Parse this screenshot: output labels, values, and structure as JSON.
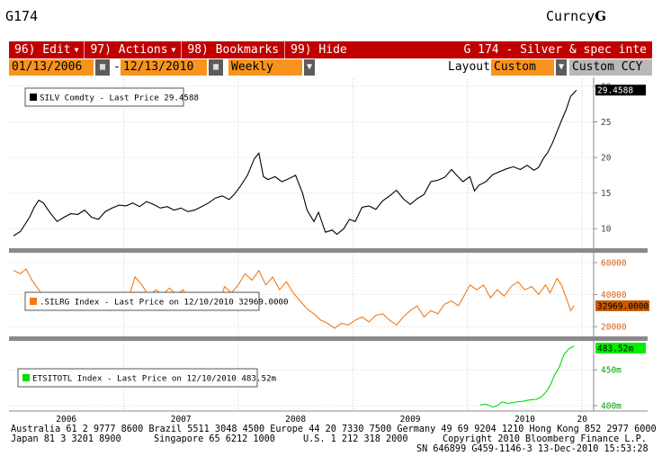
{
  "header": {
    "code": "G174",
    "currency_label": "Curncy",
    "currency_key": "G"
  },
  "menu": {
    "items": [
      {
        "label": "96) Edit",
        "dropdown": true
      },
      {
        "label": "97) Actions",
        "dropdown": true
      },
      {
        "label": "98) Bookmarks",
        "dropdown": false
      },
      {
        "label": "99) Hide",
        "dropdown": false
      }
    ],
    "title": "G 174 - Silver & spec inte"
  },
  "controls": {
    "start_date": "01/13/2006",
    "end_date": "12/13/2010",
    "period": "Weekly",
    "layout_label": "Layout",
    "layout_value": "Custom",
    "ccy": "Custom CCY"
  },
  "colors": {
    "accent": "#c00000",
    "field": "#f7941d",
    "silver": "#000000",
    "silrg": "#f07a1a",
    "etsitotl": "#00dd00"
  },
  "chart_data": [
    {
      "type": "line",
      "legend": "SILV Comdty - Last Price 29.4588",
      "last_label": "29.4588",
      "ylim": [
        7.5,
        31
      ],
      "ticks": [
        10,
        15,
        20,
        25,
        30
      ],
      "x_start": 2006.04,
      "x_end": 2010.95,
      "points": [
        [
          2006.04,
          9.0
        ],
        [
          2006.1,
          9.6
        ],
        [
          2006.14,
          10.6
        ],
        [
          2006.18,
          11.6
        ],
        [
          2006.22,
          13.0
        ],
        [
          2006.26,
          14.0
        ],
        [
          2006.3,
          13.6
        ],
        [
          2006.36,
          12.2
        ],
        [
          2006.42,
          11.0
        ],
        [
          2006.48,
          11.6
        ],
        [
          2006.54,
          12.1
        ],
        [
          2006.6,
          12.0
        ],
        [
          2006.66,
          12.6
        ],
        [
          2006.72,
          11.6
        ],
        [
          2006.78,
          11.3
        ],
        [
          2006.84,
          12.4
        ],
        [
          2006.9,
          12.9
        ],
        [
          2006.96,
          13.3
        ],
        [
          2007.02,
          13.2
        ],
        [
          2007.08,
          13.6
        ],
        [
          2007.14,
          13.1
        ],
        [
          2007.2,
          13.8
        ],
        [
          2007.26,
          13.4
        ],
        [
          2007.32,
          12.9
        ],
        [
          2007.38,
          13.1
        ],
        [
          2007.44,
          12.6
        ],
        [
          2007.5,
          12.9
        ],
        [
          2007.56,
          12.4
        ],
        [
          2007.62,
          12.6
        ],
        [
          2007.68,
          13.1
        ],
        [
          2007.74,
          13.6
        ],
        [
          2007.8,
          14.3
        ],
        [
          2007.86,
          14.6
        ],
        [
          2007.92,
          14.1
        ],
        [
          2007.97,
          14.9
        ],
        [
          2008.02,
          16.0
        ],
        [
          2008.08,
          17.5
        ],
        [
          2008.14,
          19.8
        ],
        [
          2008.18,
          20.6
        ],
        [
          2008.22,
          17.3
        ],
        [
          2008.26,
          16.9
        ],
        [
          2008.32,
          17.3
        ],
        [
          2008.38,
          16.6
        ],
        [
          2008.44,
          17.0
        ],
        [
          2008.5,
          17.5
        ],
        [
          2008.56,
          15.0
        ],
        [
          2008.6,
          12.6
        ],
        [
          2008.66,
          11.0
        ],
        [
          2008.7,
          12.3
        ],
        [
          2008.76,
          9.5
        ],
        [
          2008.82,
          9.8
        ],
        [
          2008.86,
          9.2
        ],
        [
          2008.92,
          10.0
        ],
        [
          2008.97,
          11.3
        ],
        [
          2009.02,
          11.0
        ],
        [
          2009.08,
          13.0
        ],
        [
          2009.14,
          13.2
        ],
        [
          2009.2,
          12.7
        ],
        [
          2009.26,
          13.9
        ],
        [
          2009.32,
          14.6
        ],
        [
          2009.38,
          15.4
        ],
        [
          2009.44,
          14.2
        ],
        [
          2009.5,
          13.4
        ],
        [
          2009.56,
          14.2
        ],
        [
          2009.62,
          14.8
        ],
        [
          2009.68,
          16.6
        ],
        [
          2009.74,
          16.8
        ],
        [
          2009.8,
          17.2
        ],
        [
          2009.86,
          18.3
        ],
        [
          2009.9,
          17.6
        ],
        [
          2009.96,
          16.6
        ],
        [
          2010.02,
          17.3
        ],
        [
          2010.06,
          15.3
        ],
        [
          2010.1,
          16.1
        ],
        [
          2010.16,
          16.6
        ],
        [
          2010.22,
          17.6
        ],
        [
          2010.28,
          18.0
        ],
        [
          2010.34,
          18.4
        ],
        [
          2010.4,
          18.7
        ],
        [
          2010.46,
          18.3
        ],
        [
          2010.52,
          18.9
        ],
        [
          2010.58,
          18.2
        ],
        [
          2010.62,
          18.6
        ],
        [
          2010.66,
          19.8
        ],
        [
          2010.7,
          20.7
        ],
        [
          2010.74,
          22.0
        ],
        [
          2010.78,
          23.6
        ],
        [
          2010.82,
          25.2
        ],
        [
          2010.86,
          26.7
        ],
        [
          2010.9,
          28.6
        ],
        [
          2010.95,
          29.46
        ]
      ]
    },
    {
      "type": "line",
      "legend": ".SILRG Index - Last Price on 12/10/2010 32969.0000",
      "last_label": "32969.0000",
      "ylim": [
        15000,
        65000
      ],
      "ticks": [
        20000,
        40000,
        60000
      ],
      "x_start": 2006.04,
      "x_end": 2010.93,
      "points": [
        [
          2006.04,
          55000
        ],
        [
          2006.1,
          53000
        ],
        [
          2006.15,
          56000
        ],
        [
          2006.2,
          49000
        ],
        [
          2006.25,
          44000
        ],
        [
          2006.32,
          37000
        ],
        [
          2006.38,
          32000
        ],
        [
          2006.44,
          35000
        ],
        [
          2006.5,
          31000
        ],
        [
          2006.56,
          36000
        ],
        [
          2006.6,
          38000
        ],
        [
          2006.64,
          32000
        ],
        [
          2006.7,
          36000
        ],
        [
          2006.76,
          33000
        ],
        [
          2006.82,
          38000
        ],
        [
          2006.88,
          30000
        ],
        [
          2006.94,
          36000
        ],
        [
          2007.0,
          41000
        ],
        [
          2007.04,
          37000
        ],
        [
          2007.1,
          51000
        ],
        [
          2007.16,
          46000
        ],
        [
          2007.22,
          39000
        ],
        [
          2007.28,
          43000
        ],
        [
          2007.34,
          40000
        ],
        [
          2007.4,
          44000
        ],
        [
          2007.46,
          40000
        ],
        [
          2007.52,
          43000
        ],
        [
          2007.58,
          35000
        ],
        [
          2007.64,
          38000
        ],
        [
          2007.7,
          34000
        ],
        [
          2007.76,
          39000
        ],
        [
          2007.82,
          31000
        ],
        [
          2007.88,
          45000
        ],
        [
          2007.94,
          41000
        ],
        [
          2008.0,
          46000
        ],
        [
          2008.06,
          53000
        ],
        [
          2008.12,
          49000
        ],
        [
          2008.18,
          55000
        ],
        [
          2008.24,
          46000
        ],
        [
          2008.3,
          51000
        ],
        [
          2008.36,
          43000
        ],
        [
          2008.42,
          48000
        ],
        [
          2008.48,
          41000
        ],
        [
          2008.54,
          36000
        ],
        [
          2008.6,
          31000
        ],
        [
          2008.66,
          28000
        ],
        [
          2008.72,
          24000
        ],
        [
          2008.78,
          22000
        ],
        [
          2008.84,
          19000
        ],
        [
          2008.9,
          22000
        ],
        [
          2008.96,
          21000
        ],
        [
          2009.02,
          24000
        ],
        [
          2009.08,
          26000
        ],
        [
          2009.14,
          23000
        ],
        [
          2009.2,
          27000
        ],
        [
          2009.26,
          28000
        ],
        [
          2009.32,
          24000
        ],
        [
          2009.38,
          21000
        ],
        [
          2009.44,
          26000
        ],
        [
          2009.5,
          30000
        ],
        [
          2009.56,
          33000
        ],
        [
          2009.62,
          26000
        ],
        [
          2009.68,
          30000
        ],
        [
          2009.74,
          28000
        ],
        [
          2009.8,
          34000
        ],
        [
          2009.86,
          36000
        ],
        [
          2009.92,
          33000
        ],
        [
          2009.96,
          38000
        ],
        [
          2010.02,
          46000
        ],
        [
          2010.08,
          43000
        ],
        [
          2010.14,
          46000
        ],
        [
          2010.2,
          38000
        ],
        [
          2010.26,
          43000
        ],
        [
          2010.32,
          39000
        ],
        [
          2010.38,
          45000
        ],
        [
          2010.44,
          48000
        ],
        [
          2010.5,
          43000
        ],
        [
          2010.56,
          45000
        ],
        [
          2010.62,
          40000
        ],
        [
          2010.68,
          46000
        ],
        [
          2010.72,
          41000
        ],
        [
          2010.78,
          50000
        ],
        [
          2010.82,
          46000
        ],
        [
          2010.86,
          38000
        ],
        [
          2010.9,
          30000
        ],
        [
          2010.93,
          33000
        ]
      ]
    },
    {
      "type": "line",
      "legend": "ETSITOTL Index - Last Price on 12/10/2010 483.52m",
      "last_label": "483.52m",
      "ylim": [
        395,
        488
      ],
      "ticks": [
        400,
        450
      ],
      "tick_suffix": "m",
      "x_start": 2010.11,
      "x_end": 2010.93,
      "points": [
        [
          2010.11,
          401
        ],
        [
          2010.16,
          402
        ],
        [
          2010.22,
          398
        ],
        [
          2010.26,
          400
        ],
        [
          2010.3,
          405
        ],
        [
          2010.36,
          403
        ],
        [
          2010.42,
          405
        ],
        [
          2010.48,
          406
        ],
        [
          2010.54,
          408
        ],
        [
          2010.6,
          409
        ],
        [
          2010.64,
          412
        ],
        [
          2010.68,
          418
        ],
        [
          2010.72,
          428
        ],
        [
          2010.76,
          443
        ],
        [
          2010.8,
          454
        ],
        [
          2010.84,
          471
        ],
        [
          2010.88,
          479
        ],
        [
          2010.93,
          483.5
        ]
      ]
    }
  ],
  "xaxis": {
    "labels": [
      {
        "text": "2006",
        "x": 2006.5
      },
      {
        "text": "2007",
        "x": 2007.5
      },
      {
        "text": "2008",
        "x": 2008.5
      },
      {
        "text": "2009",
        "x": 2009.5
      },
      {
        "text": "2010",
        "x": 2010.5
      },
      {
        "text": "20",
        "x": 2011.0
      }
    ],
    "gridlines": [
      2007.0,
      2008.0,
      2009.0,
      2010.0,
      2011.0
    ]
  },
  "footer": {
    "line1": "Australia 61 2 9777 8600 Brazil 5511 3048 4500 Europe 44 20 7330 7500 Germany 49 69 9204 1210 Hong Kong 852 2977 6000",
    "line2a": "Japan 81 3 3201 8900",
    "line2b": "Singapore 65 6212 1000",
    "line2c": "U.S. 1 212 318 2000",
    "line2d": "Copyright 2010 Bloomberg Finance L.P.",
    "line3": "SN 646899 G459-1146-3 13-Dec-2010 15:53:28"
  }
}
